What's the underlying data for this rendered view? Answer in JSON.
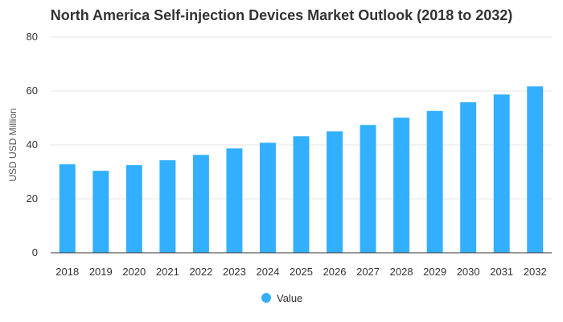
{
  "chart_data": {
    "type": "bar",
    "title": "North America Self-injection Devices Market Outlook (2018 to 2032)",
    "xlabel": "",
    "ylabel": "USD USD Million",
    "ylim": [
      0,
      80
    ],
    "yticks": [
      0,
      20,
      40,
      60,
      80
    ],
    "categories": [
      "2018",
      "2019",
      "2020",
      "2021",
      "2022",
      "2023",
      "2024",
      "2025",
      "2026",
      "2027",
      "2028",
      "2029",
      "2030",
      "2031",
      "2032"
    ],
    "series": [
      {
        "name": "Value",
        "color": "#33afff",
        "values": [
          32.8,
          30.4,
          32.5,
          34.3,
          36.3,
          38.7,
          40.8,
          43.2,
          45.0,
          47.4,
          50.1,
          52.6,
          55.8,
          58.7,
          61.7
        ]
      }
    ],
    "legend": "bottom-center",
    "grid": true
  }
}
